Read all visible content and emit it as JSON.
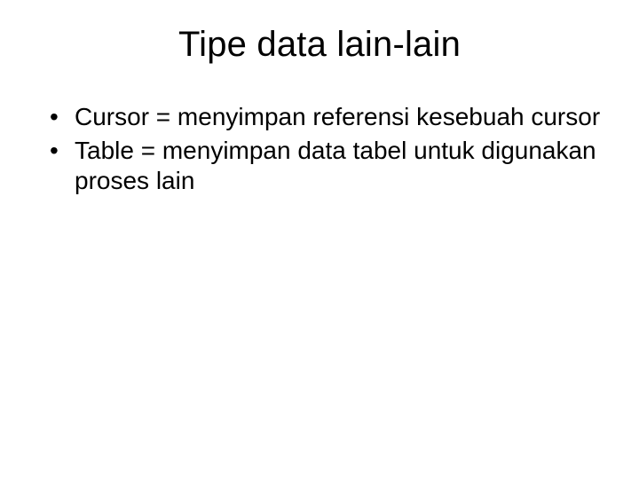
{
  "slide": {
    "title": "Tipe data lain-lain",
    "bullets": [
      "Cursor = menyimpan referensi kesebuah cursor",
      "Table = menyimpan data tabel untuk digunakan proses lain"
    ],
    "title_fontsize": 40,
    "body_fontsize": 28,
    "background_color": "#ffffff",
    "text_color": "#000000",
    "font_family": "Arial"
  }
}
